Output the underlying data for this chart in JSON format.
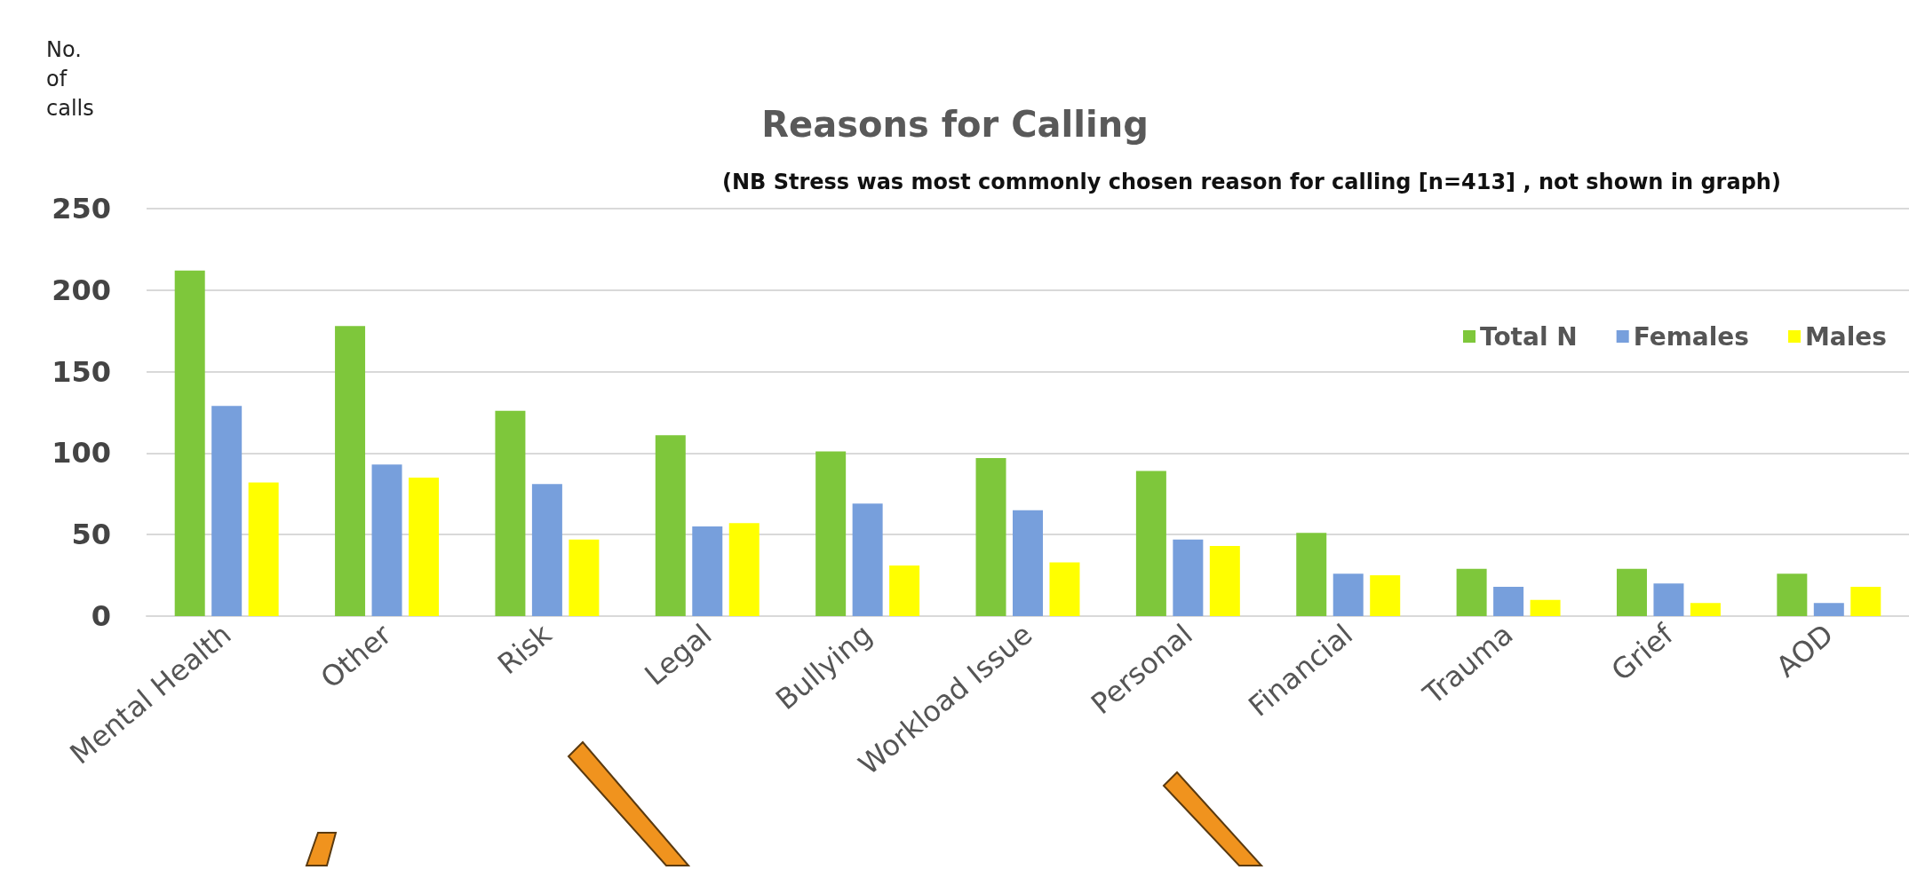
{
  "chart_data": {
    "type": "bar",
    "title": "Reasons for Calling",
    "subtitle": "(NB Stress was most commonly chosen reason for calling [n=413] , not shown in graph)",
    "ylabel": "No. of calls",
    "categories": [
      "Mental Health",
      "Other",
      "Risk",
      "Legal",
      "Bullying",
      "Workload Issue",
      "Personal",
      "Financial",
      "Trauma",
      "Grief",
      "AOD"
    ],
    "series": [
      {
        "name": "Total N",
        "color": "#7ec73b",
        "values": [
          212,
          178,
          126,
          111,
          101,
          97,
          89,
          51,
          29,
          29,
          26
        ]
      },
      {
        "name": "Females",
        "color": "#779fdc",
        "values": [
          129,
          93,
          81,
          55,
          69,
          65,
          47,
          26,
          18,
          20,
          8
        ]
      },
      {
        "name": "Males",
        "color": "#ffff00",
        "values": [
          82,
          85,
          47,
          57,
          31,
          33,
          43,
          25,
          10,
          8,
          18
        ]
      }
    ],
    "ylim": [
      0,
      250
    ],
    "yticks": [
      0,
      50,
      100,
      150,
      200,
      250
    ],
    "grid": "y",
    "legend": "top right"
  }
}
